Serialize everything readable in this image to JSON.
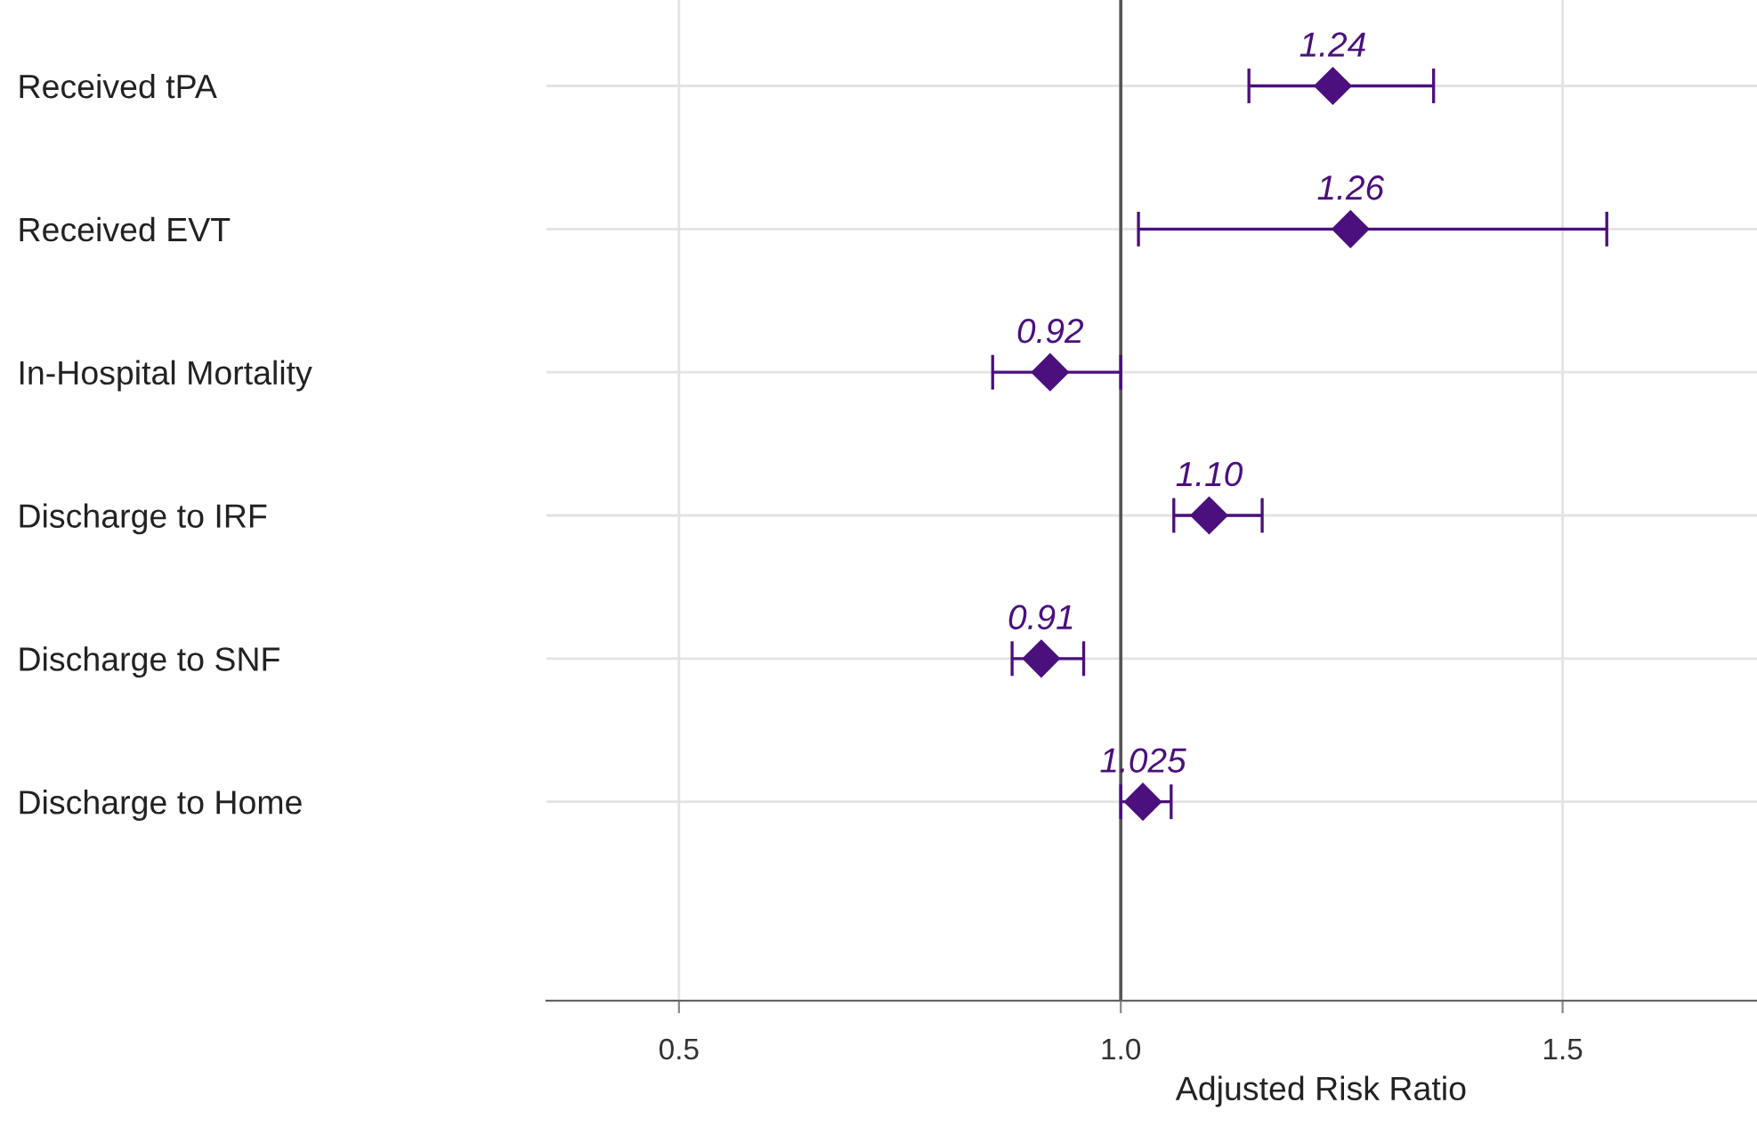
{
  "chart_data": {
    "type": "scatter",
    "orientation": "horizontal",
    "xlabel": "Adjusted Risk Ratio",
    "categories": [
      "Received tPA",
      "Received EVT",
      "In-Hospital Mortality",
      "Discharge to IRF",
      "Discharge to SNF",
      "Discharge to Home"
    ],
    "series": [
      {
        "color": "#4b0f7e",
        "values": [
          1.24,
          1.26,
          0.92,
          1.1,
          0.91,
          1.025
        ],
        "errors": [
          [
            1.145,
            1.354
          ],
          [
            1.02,
            1.55
          ],
          [
            0.855,
            1.0
          ],
          [
            1.06,
            1.16
          ],
          [
            0.877,
            0.958
          ],
          [
            1.0,
            1.057
          ]
        ],
        "value_labels": [
          "1.24",
          "1.26",
          "0.92",
          "1.10",
          "0.91",
          "1.025"
        ]
      }
    ],
    "xlim": [
      0.35,
      1.72
    ],
    "xticks": [
      {
        "value": 0.5,
        "label": "0.5"
      },
      {
        "value": 1.0,
        "label": "1.0"
      },
      {
        "value": 1.5,
        "label": "1.5"
      }
    ],
    "ref_lines": [
      {
        "axis": "x",
        "value": 1.0,
        "color": "#555555"
      }
    ],
    "grid": true,
    "marker": "diamond"
  }
}
